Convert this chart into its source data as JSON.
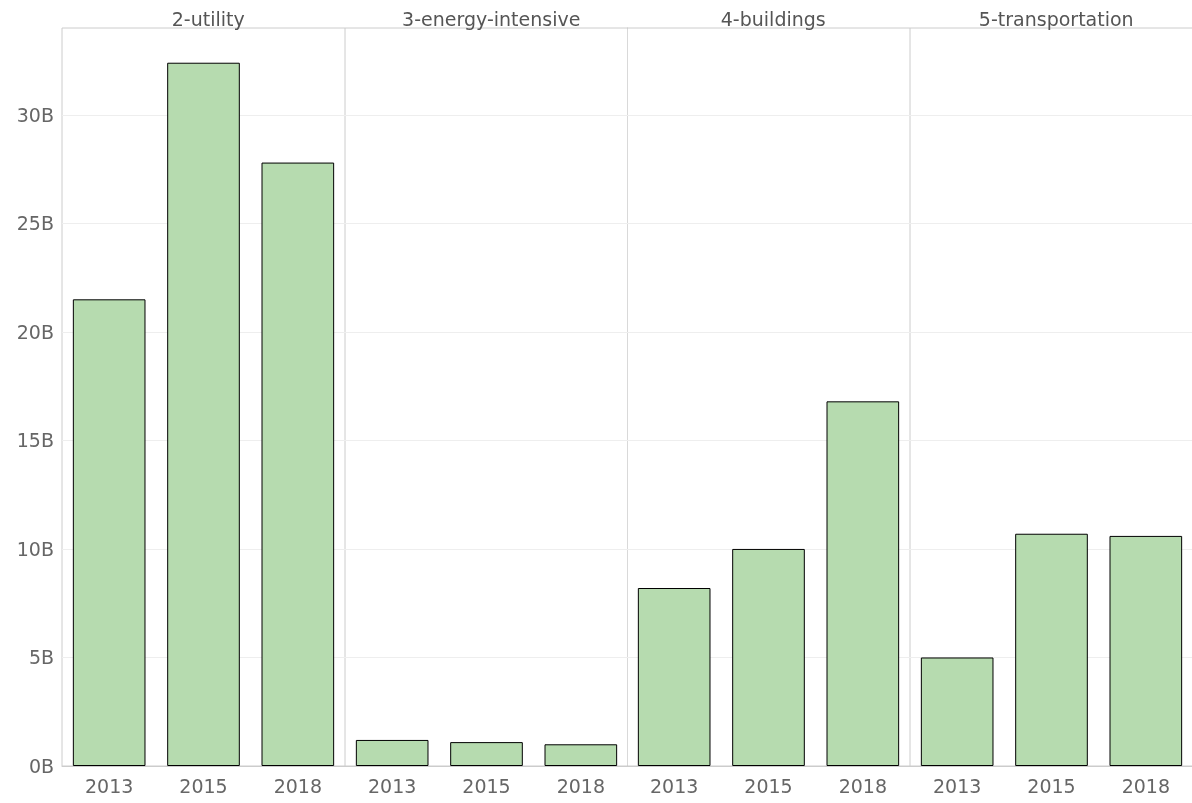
{
  "chart_data": [
    {
      "type": "bar",
      "title": "2-utility",
      "categories": [
        "2013",
        "2015",
        "2018"
      ],
      "values": [
        21.5,
        32.4,
        27.8
      ],
      "color": "#b6dbaf",
      "ylim": [
        0,
        34
      ],
      "yticks": [
        {
          "value": 0,
          "label": "0B"
        },
        {
          "value": 5,
          "label": "5B"
        },
        {
          "value": 10,
          "label": "10B"
        },
        {
          "value": 15,
          "label": "15B"
        },
        {
          "value": 20,
          "label": "20B"
        },
        {
          "value": 25,
          "label": "25B"
        },
        {
          "value": 30,
          "label": "30B"
        }
      ],
      "grid": "y"
    },
    {
      "type": "bar",
      "title": "3-energy-intensive",
      "categories": [
        "2013",
        "2015",
        "2018"
      ],
      "values": [
        1.2,
        1.1,
        1.0
      ],
      "color": "#b6dbaf",
      "ylim": [
        0,
        34
      ],
      "yticks": [
        0,
        5,
        10,
        15,
        20,
        25,
        30
      ],
      "grid": "y",
      "tick_labels": "x"
    },
    {
      "type": "bar",
      "title": "4-buildings",
      "categories": [
        "2013",
        "2015",
        "2018"
      ],
      "values": [
        8.2,
        10.0,
        16.8
      ],
      "color": "#b6dbaf",
      "ylim": [
        0,
        34
      ],
      "yticks": [
        0,
        5,
        10,
        15,
        20,
        25,
        30
      ],
      "grid": "y",
      "tick_labels": "x"
    },
    {
      "type": "bar",
      "title": "5-transportation",
      "categories": [
        "2013",
        "2015",
        "2018"
      ],
      "values": [
        5.0,
        10.7,
        10.6
      ],
      "color": "#b6dbaf",
      "ylim": [
        0,
        34
      ],
      "yticks": [
        0,
        5,
        10,
        15,
        20,
        25,
        30
      ],
      "grid": "y",
      "tick_labels": "x"
    }
  ]
}
